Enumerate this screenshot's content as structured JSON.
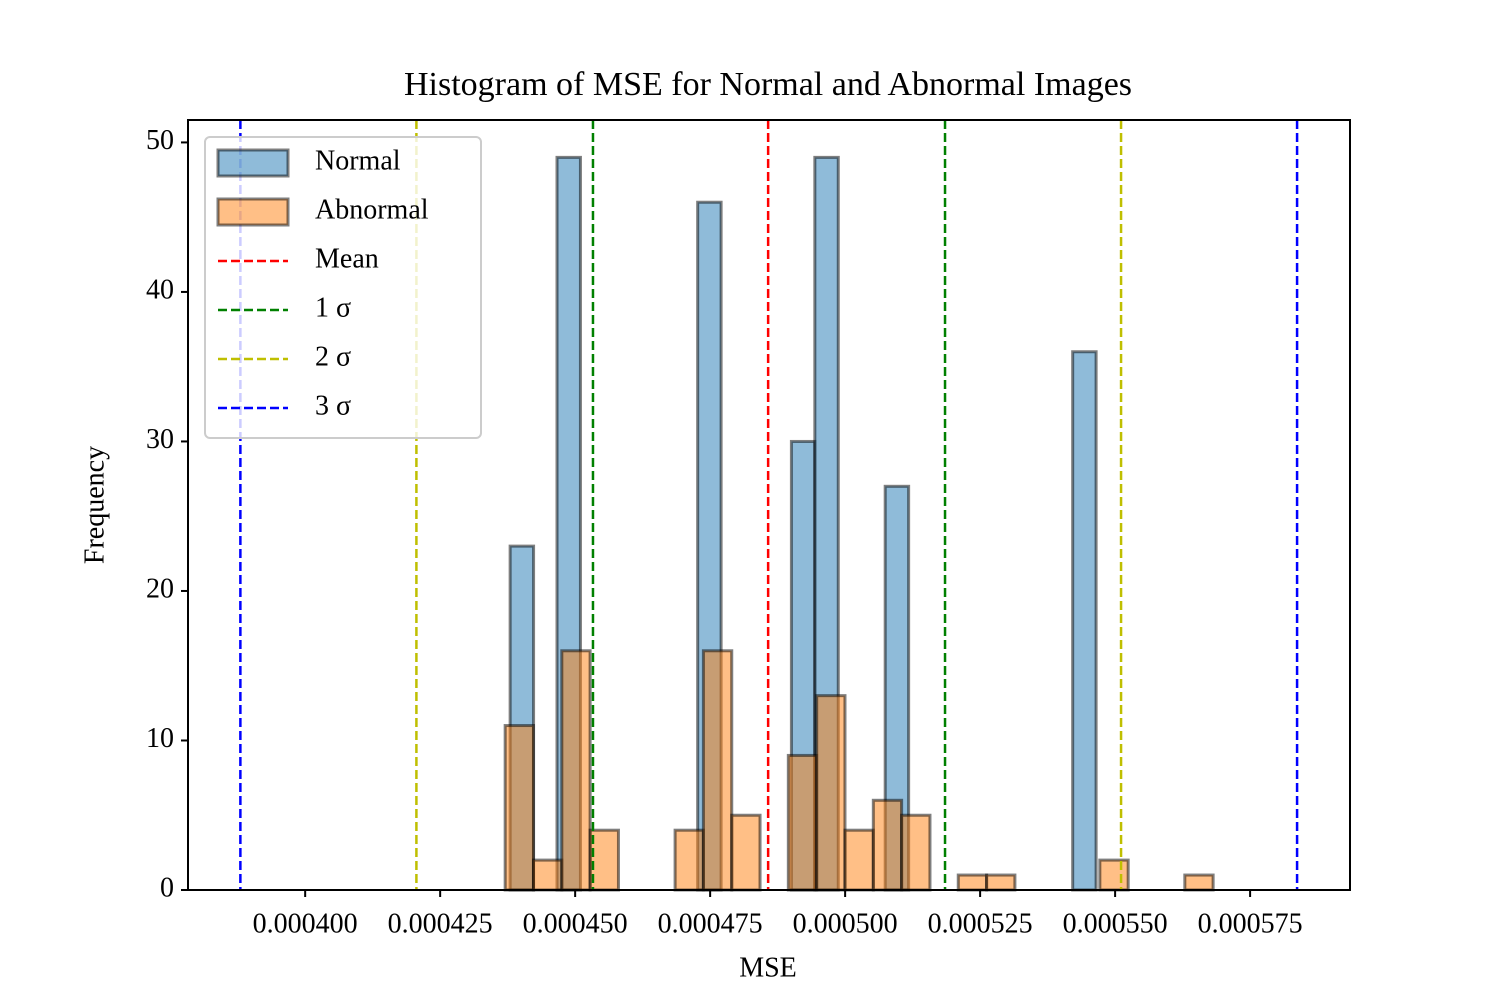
{
  "chart_data": {
    "type": "histogram",
    "title": "Histogram of MSE for Normal and Abnormal Images",
    "x_label": "MSE",
    "y_label": "Frequency",
    "series": [
      {
        "name": "Normal",
        "color": "#1f77b4",
        "bins": [
          0.00043796,
          0.0004423,
          0.00044664,
          0.00045098,
          0.00045532,
          0.00045966,
          0.00046401,
          0.00046835,
          0.00047269,
          0.00047703,
          0.00048137,
          0.00048571,
          0.00049005,
          0.00049439,
          0.00049873,
          0.00050308,
          0.00050742,
          0.00051176,
          0.0005161,
          0.00052044,
          0.00052478,
          0.00052912,
          0.00053346,
          0.0005378,
          0.00054214,
          0.00054648
        ],
        "values": [
          23,
          0,
          49,
          0,
          0,
          0,
          0,
          0,
          46,
          0,
          0,
          0,
          30,
          49,
          0,
          0,
          27,
          0,
          0,
          0,
          0,
          0,
          0,
          0,
          36
        ]
      },
      {
        "name": "Abnormal",
        "color": "#ff7f0e",
        "bins": [
          0.00043704,
          0.00044228,
          0.00044753,
          0.00045277,
          0.00045802,
          0.00046326,
          0.00046851,
          0.00047375,
          0.000479,
          0.00048424,
          0.00048948,
          0.00049473,
          0.00049997,
          0.00050522,
          0.00051046,
          0.00051571,
          0.00052095,
          0.0005262,
          0.00053144,
          0.00053668,
          0.00054193,
          0.00054717,
          0.00055242,
          0.00055766,
          0.00056291,
          0.00056815
        ],
        "values": [
          11,
          2,
          16,
          4,
          0,
          0,
          4,
          16,
          5,
          0,
          9,
          13,
          4,
          6,
          5,
          0,
          1,
          1,
          0,
          0,
          0,
          2,
          0,
          0,
          1
        ]
      }
    ],
    "lines": [
      {
        "name": "Mean",
        "color": "#ff0000",
        "values": [
          0.00048574
        ]
      },
      {
        "name": "1 σ",
        "color": "#008000",
        "values": [
          0.0004533,
          0.0005185
        ]
      },
      {
        "name": "2 σ",
        "color": "#bfbf00",
        "values": [
          0.0004206,
          0.0005511
        ]
      },
      {
        "name": "3 σ",
        "color": "#0000ff",
        "values": [
          0.000388,
          0.0005837
        ]
      }
    ],
    "xlim": [
      0.0003783,
      0.0005935
    ],
    "ylim": [
      0,
      51.5
    ],
    "xticks": [
      {
        "value": 0.0004,
        "label": "0.000400"
      },
      {
        "value": 0.000425,
        "label": "0.000425"
      },
      {
        "value": 0.00045,
        "label": "0.000450"
      },
      {
        "value": 0.000475,
        "label": "0.000475"
      },
      {
        "value": 0.0005,
        "label": "0.000500"
      },
      {
        "value": 0.000525,
        "label": "0.000525"
      },
      {
        "value": 0.00055,
        "label": "0.000550"
      },
      {
        "value": 0.000575,
        "label": "0.000575"
      }
    ],
    "yticks": [
      0,
      10,
      20,
      30,
      40,
      50
    ],
    "legend": "upper left"
  }
}
